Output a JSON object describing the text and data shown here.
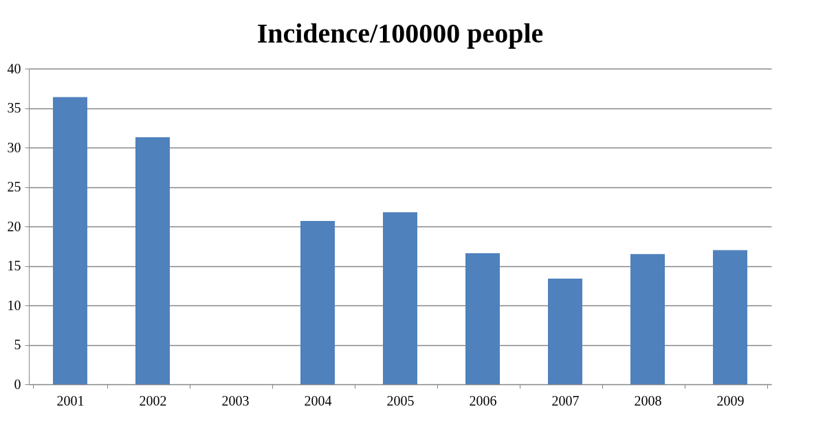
{
  "chart_data": {
    "type": "bar",
    "title": "Incidence/100000 people",
    "categories": [
      "2001",
      "2002",
      "2003",
      "2004",
      "2005",
      "2006",
      "2007",
      "2008",
      "2009"
    ],
    "values": [
      36.4,
      31.3,
      null,
      20.7,
      21.8,
      16.6,
      13.4,
      16.5,
      17.0
    ],
    "color": "#4f81bd",
    "ylim": [
      0,
      40
    ],
    "yticks": [
      0,
      5,
      10,
      15,
      20,
      25,
      30,
      35,
      40
    ],
    "grid": "y"
  }
}
